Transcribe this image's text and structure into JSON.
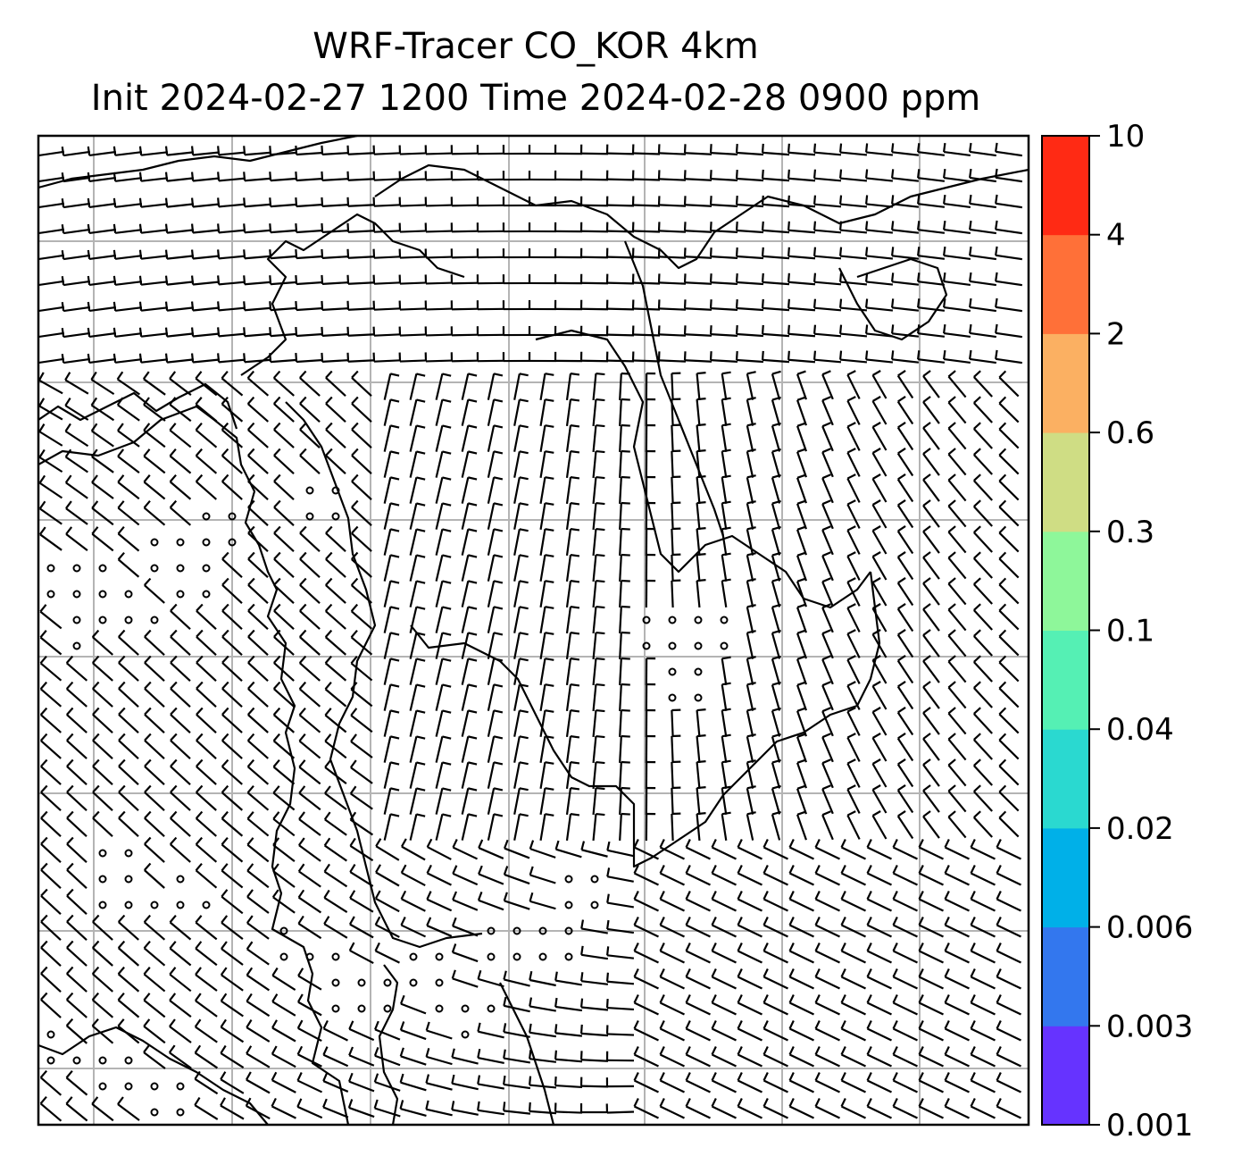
{
  "figure": {
    "title_line1": "WRF-Tracer CO_KOR 4km",
    "title_line2": "Init 2024-02-27 1200 Time 2024-02-28 0900 ppm"
  },
  "colorbar": {
    "levels": [
      "0.001",
      "0.003",
      "0.006",
      "0.02",
      "0.04",
      "0.1",
      "0.3",
      "0.6",
      "2",
      "4",
      "10"
    ],
    "colors": [
      "#6633ff",
      "#3377ee",
      "#00b0e8",
      "#2ad9d0",
      "#55f0b4",
      "#8ef79a",
      "#cfdd84",
      "#fbb062",
      "#ff7038",
      "#ff2a14"
    ]
  },
  "map": {
    "frame_color": "#000000",
    "grid_color": "#b4b4b4",
    "coastline_color": "#000000",
    "barb_color": "#000000",
    "grid_lines": "on",
    "overlay": "wind barbs and coastlines",
    "icons": [
      "wind-barb-icon",
      "calm-circle-icon"
    ]
  }
}
